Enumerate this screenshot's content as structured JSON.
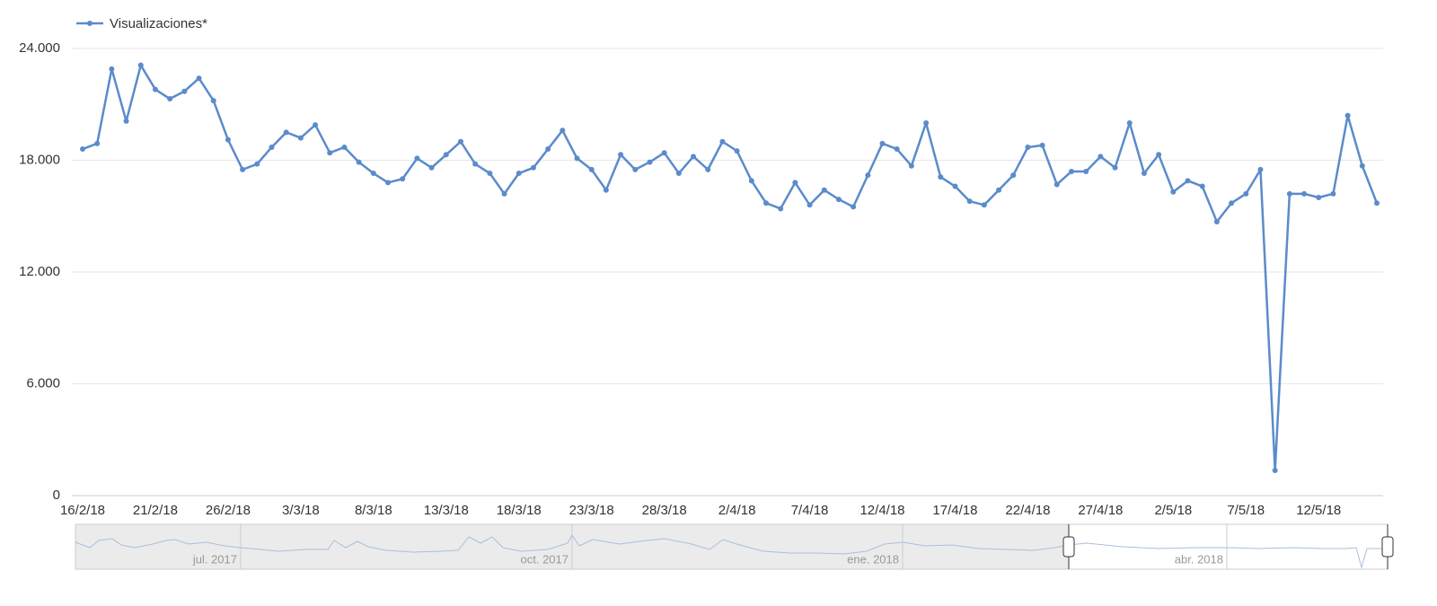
{
  "chart_data": {
    "type": "line",
    "series": [
      {
        "name": "Visualizaciones*",
        "color": "#5b8bcb",
        "values": [
          18600,
          18900,
          22900,
          20100,
          23100,
          21800,
          21300,
          21700,
          22400,
          21200,
          19100,
          17500,
          17800,
          18700,
          19500,
          19200,
          19900,
          18400,
          18700,
          17900,
          17300,
          16800,
          17000,
          18100,
          17600,
          18300,
          19000,
          17800,
          17300,
          16200,
          17300,
          17600,
          18600,
          19600,
          18100,
          17500,
          16400,
          18300,
          17500,
          17900,
          18400,
          17300,
          18200,
          17500,
          19000,
          18500,
          16900,
          15700,
          15400,
          16800,
          15600,
          16400,
          15900,
          15500,
          17200,
          18900,
          18600,
          17700,
          20000,
          17100,
          16600,
          15800,
          15600,
          16400,
          17200,
          18700,
          18800,
          16700,
          17400,
          17400,
          18200,
          17600,
          20000,
          17300,
          18300,
          16300,
          16900,
          16600,
          14700,
          15700,
          16200,
          17500,
          1350,
          16200,
          16200,
          16000,
          16200,
          20400,
          17700,
          15700
        ]
      }
    ],
    "categories": [
      "16/2/18",
      null,
      null,
      null,
      null,
      "21/2/18",
      null,
      null,
      null,
      null,
      "26/2/18",
      null,
      null,
      null,
      null,
      "3/3/18",
      null,
      null,
      null,
      null,
      "8/3/18",
      null,
      null,
      null,
      null,
      "13/3/18",
      null,
      null,
      null,
      null,
      "18/3/18",
      null,
      null,
      null,
      null,
      "23/3/18",
      null,
      null,
      null,
      null,
      "28/3/18",
      null,
      null,
      null,
      null,
      "2/4/18",
      null,
      null,
      null,
      null,
      "7/4/18",
      null,
      null,
      null,
      null,
      "12/4/18",
      null,
      null,
      null,
      null,
      "17/4/18",
      null,
      null,
      null,
      null,
      "22/4/18",
      null,
      null,
      null,
      null,
      "27/4/18",
      null,
      null,
      null,
      null,
      "2/5/18",
      null,
      null,
      null,
      null,
      "7/5/18",
      null,
      null,
      null,
      null,
      "12/5/18",
      null,
      null,
      null,
      null
    ],
    "ylim": [
      0,
      24000
    ],
    "yticks": [
      0,
      {
        "value": 6000,
        "label": "6.000"
      },
      {
        "value": 12000,
        "label": "12.000"
      },
      {
        "value": 18000,
        "label": "18.000"
      },
      {
        "value": 24000,
        "label": "24.000"
      }
    ],
    "grid": true,
    "navigator": {
      "labels": [
        "jul. 2017",
        "oct. 2017",
        "ene. 2018",
        "abr. 2018"
      ]
    }
  }
}
